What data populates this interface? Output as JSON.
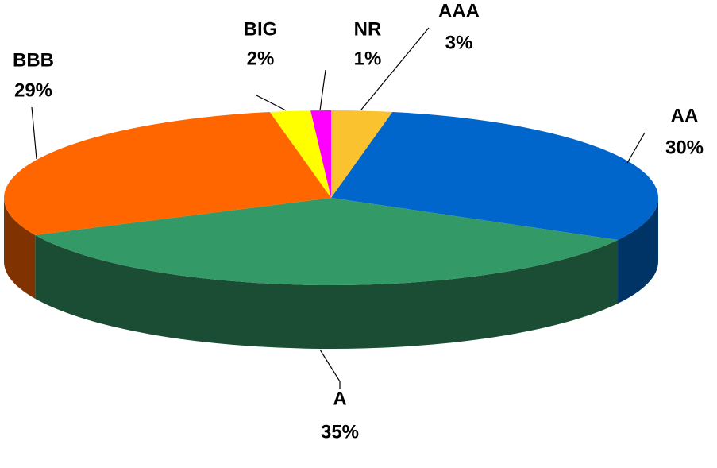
{
  "chart_data": {
    "type": "pie3d",
    "categories": [
      "AAA",
      "AA",
      "A",
      "BBB",
      "BIG",
      "NR"
    ],
    "values": [
      3,
      30,
      35,
      29,
      2,
      1
    ],
    "value_labels": [
      "3%",
      "30%",
      "35%",
      "29%",
      "2%",
      "1%"
    ],
    "colors": [
      "#F9C22E",
      "#0066CC",
      "#339966",
      "#FF6600",
      "#FFFF00",
      "#FF00FF"
    ]
  }
}
